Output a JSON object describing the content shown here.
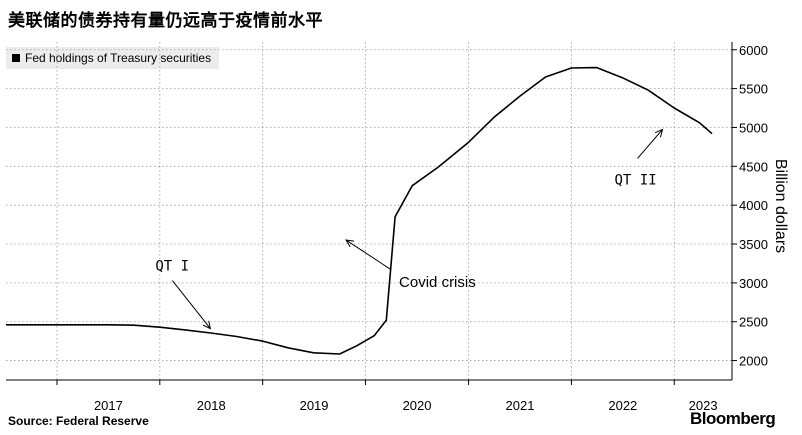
{
  "title": "美联储的债券持有量仍远高于疫情前水平",
  "legend": {
    "label": "Fed holdings of Treasury securities",
    "color": "#000000"
  },
  "source": "Source: Federal Reserve",
  "brand": "Bloomberg",
  "chart_data": {
    "type": "line",
    "title": "美联储的债券持有量仍远高于疫情前水平",
    "ylabel": "Billion dollars",
    "xlabel": "",
    "grid": true,
    "legend_position": "top-left",
    "y_ticks": [
      2000,
      2500,
      3000,
      3500,
      4000,
      4500,
      5000,
      5500,
      6000
    ],
    "x_ticks": [
      "2017",
      "2018",
      "2019",
      "2020",
      "2021",
      "2022",
      "2023"
    ],
    "ylim": [
      1750,
      6100
    ],
    "xlim": [
      "2016-07-04",
      "2023-07-25"
    ],
    "series": [
      {
        "name": "Fed holdings of Treasury securities",
        "color": "#000000",
        "x": [
          "2016-07-04",
          "2016-10-01",
          "2017-01-01",
          "2017-04-01",
          "2017-07-01",
          "2017-10-01",
          "2018-01-01",
          "2018-04-01",
          "2018-07-01",
          "2018-10-01",
          "2019-01-01",
          "2019-04-01",
          "2019-07-01",
          "2019-10-01",
          "2019-12-01",
          "2020-02-01",
          "2020-03-15",
          "2020-04-15",
          "2020-06-15",
          "2020-09-15",
          "2021-01-01",
          "2021-04-01",
          "2021-07-01",
          "2021-10-01",
          "2022-01-01",
          "2022-04-01",
          "2022-07-01",
          "2022-10-01",
          "2023-01-01",
          "2023-04-01",
          "2023-05-15"
        ],
        "values": [
          2460,
          2460,
          2460,
          2460,
          2460,
          2455,
          2430,
          2395,
          2355,
          2310,
          2250,
          2165,
          2100,
          2085,
          2190,
          2320,
          2520,
          3850,
          4250,
          4490,
          4810,
          5130,
          5400,
          5650,
          5765,
          5770,
          5640,
          5480,
          5250,
          5060,
          4920
        ]
      }
    ],
    "annotations": [
      {
        "text": "QT I",
        "x": "2018-06-01",
        "y": 2450
      },
      {
        "text": "Covid crisis",
        "x": "2020-04-15",
        "y": 3500
      },
      {
        "text": "QT II",
        "x": "2022-12-01",
        "y": 5000
      }
    ]
  }
}
